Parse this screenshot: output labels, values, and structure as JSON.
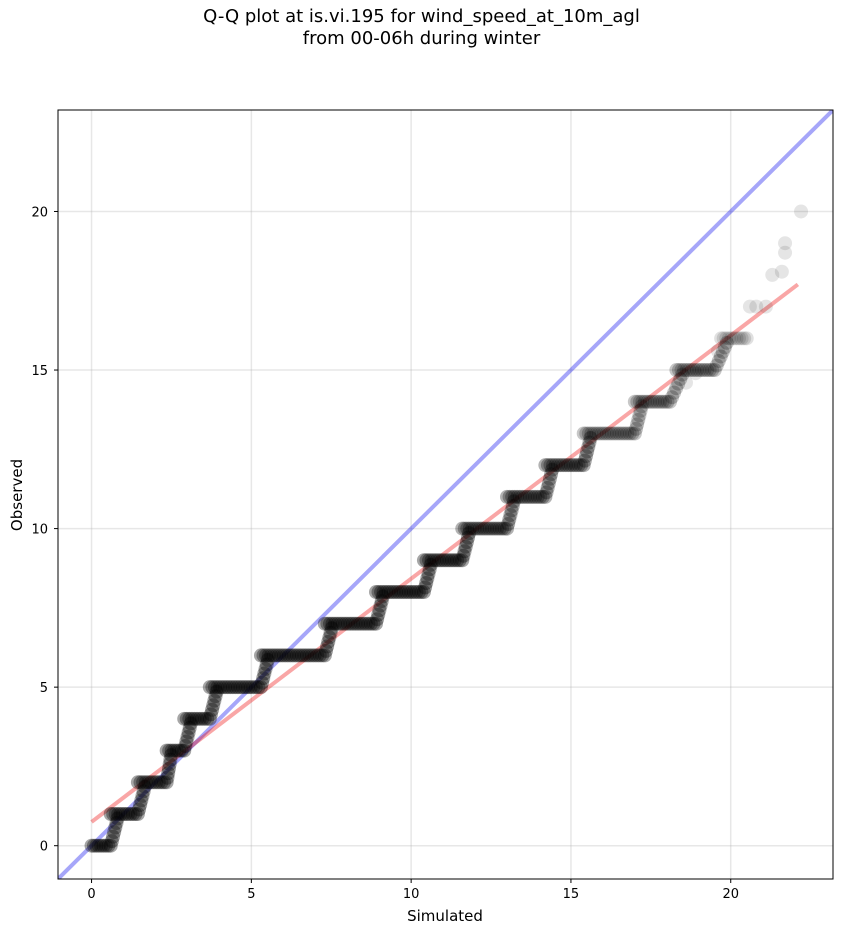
{
  "chart_data": {
    "type": "scatter",
    "title_lines": [
      "Q-Q plot at is.vi.195 for wind_speed_at_10m_agl",
      "from 00-06h during winter"
    ],
    "xlabel": "Simulated",
    "ylabel": "Observed",
    "xlim": [
      -1.05,
      23.2
    ],
    "ylim": [
      -1.05,
      23.2
    ],
    "xticks": [
      0,
      5,
      10,
      15,
      20
    ],
    "yticks": [
      0,
      5,
      10,
      15,
      20
    ],
    "grid": true,
    "point_color": "#000000",
    "identity_line": {
      "color": "#0000ee",
      "from": [
        -1.05,
        -1.05
      ],
      "to": [
        23.2,
        23.2
      ]
    },
    "fit_line": {
      "color": "#ee0000",
      "from": [
        0,
        0.75
      ],
      "to": [
        22.1,
        17.7
      ]
    },
    "steps": [
      {
        "y": 0,
        "x_start": 0.0,
        "x_end": 0.6
      },
      {
        "y": 1,
        "x_start": 0.6,
        "x_end": 1.45
      },
      {
        "y": 2,
        "x_start": 1.45,
        "x_end": 2.35
      },
      {
        "y": 3,
        "x_start": 2.35,
        "x_end": 2.9
      },
      {
        "y": 4,
        "x_start": 2.9,
        "x_end": 3.7
      },
      {
        "y": 5,
        "x_start": 3.7,
        "x_end": 5.3
      },
      {
        "y": 6,
        "x_start": 5.3,
        "x_end": 7.3
      },
      {
        "y": 7,
        "x_start": 7.3,
        "x_end": 8.9
      },
      {
        "y": 8,
        "x_start": 8.9,
        "x_end": 10.4
      },
      {
        "y": 9,
        "x_start": 10.4,
        "x_end": 11.6
      },
      {
        "y": 10,
        "x_start": 11.6,
        "x_end": 13.0
      },
      {
        "y": 11,
        "x_start": 13.0,
        "x_end": 14.2
      },
      {
        "y": 12,
        "x_start": 14.2,
        "x_end": 15.4
      },
      {
        "y": 13,
        "x_start": 15.4,
        "x_end": 17.0
      },
      {
        "y": 14,
        "x_start": 17.0,
        "x_end": 18.1
      },
      {
        "y": 15,
        "x_start": 18.3,
        "x_end": 19.5
      },
      {
        "y": 16,
        "x_start": 19.7,
        "x_end": 20.5
      }
    ],
    "outliers": [
      {
        "x": 18.6,
        "y": 14.6
      },
      {
        "x": 18.9,
        "y": 14.9
      },
      {
        "x": 19.6,
        "y": 15.6
      },
      {
        "x": 20.6,
        "y": 17.0
      },
      {
        "x": 20.8,
        "y": 17.0
      },
      {
        "x": 21.1,
        "y": 17.0
      },
      {
        "x": 21.3,
        "y": 18.0
      },
      {
        "x": 21.6,
        "y": 18.1
      },
      {
        "x": 21.7,
        "y": 18.7
      },
      {
        "x": 21.7,
        "y": 19.0
      },
      {
        "x": 22.2,
        "y": 20.0
      }
    ]
  }
}
